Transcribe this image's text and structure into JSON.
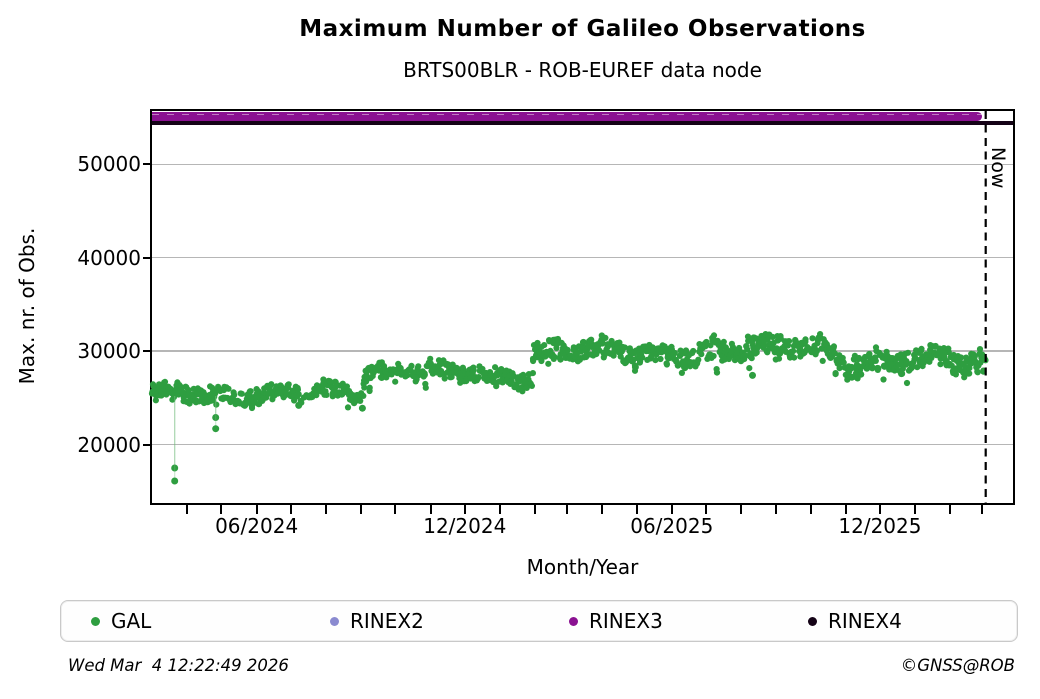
{
  "footer": {
    "timestamp": "Wed Mar  4 12:22:49 2026",
    "credit": "©GNSS@ROB"
  },
  "chart_data": {
    "type": "scatter",
    "title": "Maximum Number of Galileo Observations",
    "subtitle": "BRTS00BLR - ROB-EUREF data node",
    "xlabel": "Month/Year",
    "ylabel": "Max. nr. of Obs.",
    "x_range": [
      "2024-03-01",
      "2026-03-28"
    ],
    "y_range": [
      13750,
      55700
    ],
    "y_ticks": [
      20000,
      30000,
      40000,
      50000
    ],
    "x_major_ticks": [
      {
        "date": "2024-06-01",
        "label": "06/2024"
      },
      {
        "date": "2024-12-01",
        "label": "12/2024"
      },
      {
        "date": "2025-06-01",
        "label": "06/2025"
      },
      {
        "date": "2025-12-01",
        "label": "12/2025"
      }
    ],
    "x_minor_ticks": {
      "from": "2024-04-01",
      "to": "2026-03-01",
      "interval_months": 1
    },
    "grid": "horizontal",
    "now": {
      "date": "2026-03-04",
      "label": "Now"
    },
    "legend_position": "bottom",
    "series": [
      {
        "name": "GAL",
        "color": "#2e9e40",
        "type": "scatter-band",
        "segments": [
          {
            "from": "2024-03-01",
            "to": "2024-07-08",
            "center": 25400,
            "spread": 2000
          },
          {
            "from": "2024-07-08",
            "to": "2024-07-19",
            "center": 24800,
            "spread": 1400,
            "sparse": true
          },
          {
            "from": "2024-07-19",
            "to": "2024-09-03",
            "center": 25700,
            "spread": 1900
          },
          {
            "from": "2024-09-03",
            "to": "2025-01-30",
            "center": 27600,
            "spread": 2000
          },
          {
            "from": "2025-01-30",
            "to": "2025-10-23",
            "center": 30000,
            "spread": 2300
          },
          {
            "from": "2025-10-23",
            "to": "2026-03-04",
            "center": 28600,
            "spread": 2500
          }
        ],
        "outliers": [
          {
            "date": "2024-03-21",
            "value": 17500,
            "connector": true
          },
          {
            "date": "2024-03-21",
            "value": 16100,
            "connector": true
          },
          {
            "date": "2024-04-26",
            "value": 22900,
            "connector": true
          },
          {
            "date": "2024-04-26",
            "value": 21700,
            "connector": true
          },
          {
            "date": "2024-07-08",
            "value": 24200,
            "connector": false
          },
          {
            "date": "2024-09-02",
            "value": 23900,
            "connector": false
          },
          {
            "date": "2025-04-30",
            "value": 28300,
            "connector": false
          },
          {
            "date": "2025-08-11",
            "value": 27400,
            "connector": false
          },
          {
            "date": "2025-12-20",
            "value": 27600,
            "connector": false
          }
        ]
      },
      {
        "name": "RINEX2",
        "color": "#8a8ad0",
        "type": "none"
      },
      {
        "name": "RINEX3",
        "color": "#8a1191",
        "type": "hband",
        "value": 55100,
        "from": "2024-03-01",
        "to": "2026-03-04"
      },
      {
        "name": "RINEX4",
        "color": "#140216",
        "type": "hline",
        "value": 54400
      }
    ]
  }
}
